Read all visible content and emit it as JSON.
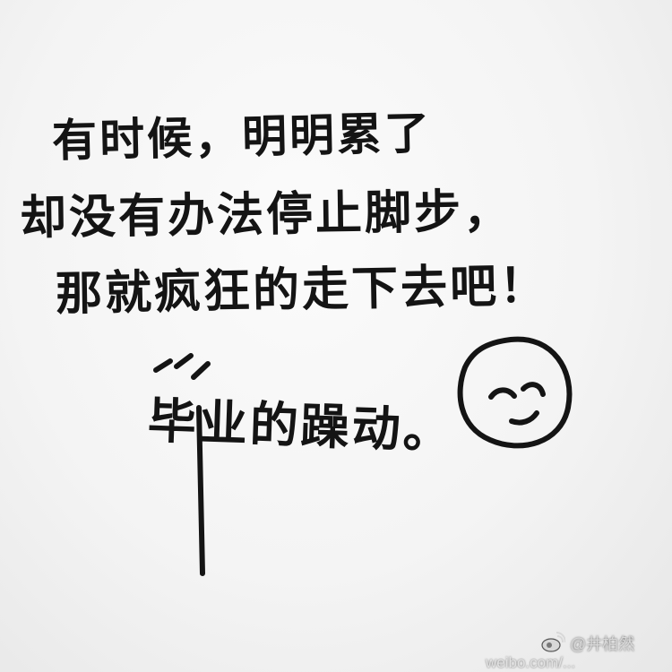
{
  "photo": {
    "subject": "handwritten note on white paper",
    "lines": [
      "有时候，明明累了",
      "却没有办法停止脚步，",
      "那就疯狂的走下去吧！",
      "毕业的躁动。"
    ],
    "doodle_icon": "smiley-face-drawing",
    "watermark": {
      "icon": "weibo-logo-icon",
      "handle": "@井柏然",
      "url": "weibo.com/..."
    },
    "colors": {
      "paper": "#f4f4f4",
      "ink": "#141414",
      "watermark": "#d8d8d8"
    }
  }
}
